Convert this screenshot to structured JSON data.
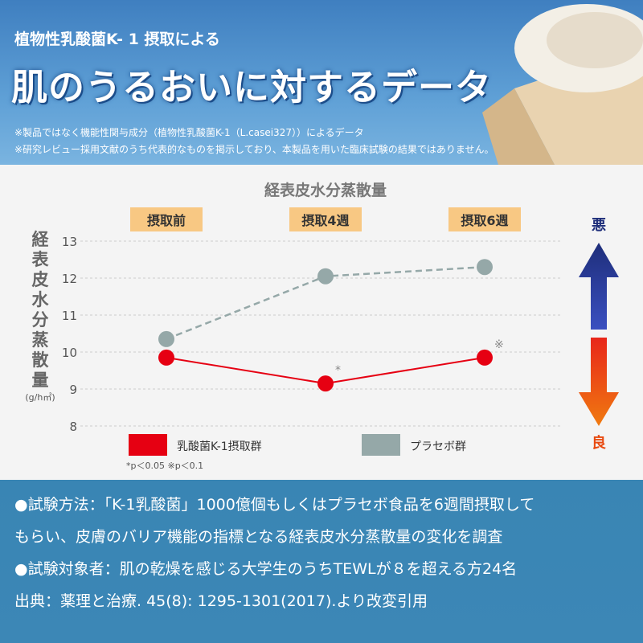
{
  "header": {
    "subtitle": "植物性乳酸菌K- 1 摂取による",
    "title": "肌のうるおいに対するデータ",
    "note1": "※製品ではなく機能性関与成分（植物性乳酸菌K-1（L.casei327））によるデータ",
    "note2": "※研究レビュー採用文献のうち代表的なものを掲示しており、本製品を用いた臨床試験の結果ではありません。"
  },
  "chart_data": {
    "type": "line",
    "title": "経表皮水分蒸散量",
    "ylabel": "経表皮水分蒸散量",
    "yunit": "(g/h㎡)",
    "categories": [
      "摂取前",
      "摂取4週",
      "摂取6週"
    ],
    "yticks": [
      "8",
      "9",
      "10",
      "11",
      "12",
      "13"
    ],
    "ylim": [
      8,
      13
    ],
    "grid": true,
    "legend": "bottom",
    "series": [
      {
        "name": "乳酸菌K-1摂取群",
        "values": [
          9.85,
          9.15,
          9.85
        ],
        "color": "#e60012",
        "dash": false,
        "marks": [
          "",
          "*",
          "※"
        ]
      },
      {
        "name": "プラセボ群",
        "values": [
          10.35,
          12.05,
          12.3
        ],
        "color": "#95a8a8",
        "dash": true
      }
    ],
    "footnote": "*p＜0.05  ※p＜0.1",
    "arrow_top": "悪",
    "arrow_bottom": "良",
    "colors": {
      "up": "#1e2e7a",
      "down": "#e84a10",
      "label_bg": "#f8c883"
    }
  },
  "bottom": {
    "line1": "●試験方法：「K-1乳酸菌」1000億個もしくはプラセボ食品を6週間摂取して",
    "line2": "もらい、皮膚のバリア機能の指標となる経表皮水分蒸散量の変化を調査",
    "line3": "●試験対象者：肌の乾燥を感じる大学生のうちTEWLが８を超える方24名",
    "line4": "出典：薬理と治療. 45(8): 1295-1301(2017).より改変引用"
  }
}
